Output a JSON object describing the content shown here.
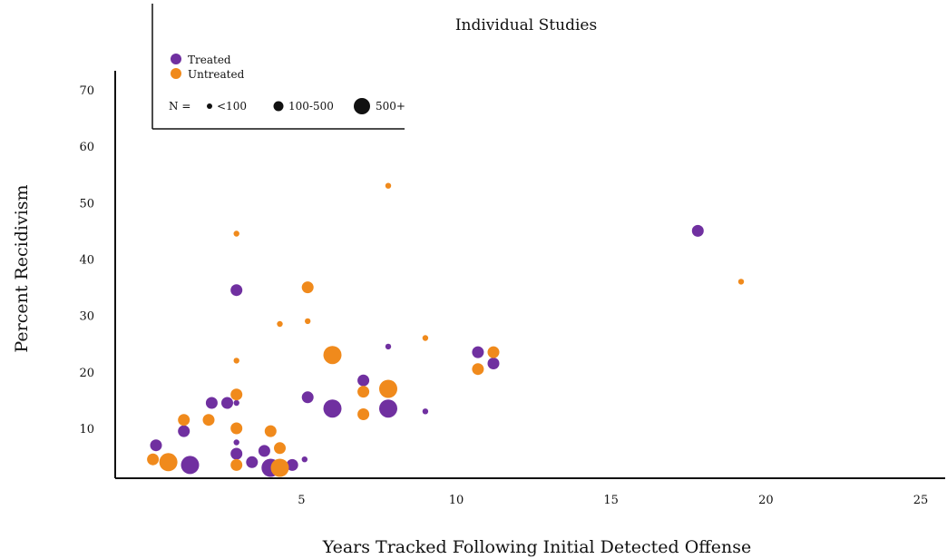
{
  "chart_data": {
    "type": "scatter",
    "title": "Individual Studies",
    "xlabel": "Years Tracked Following Initial Detected Offense",
    "ylabel": "Percent Recidivism",
    "xlim": [
      0,
      26
    ],
    "ylim": [
      0,
      75
    ],
    "xticks": [
      5,
      10,
      15,
      20,
      25
    ],
    "yticks": [
      10,
      20,
      30,
      40,
      50,
      60,
      70
    ],
    "grid": false,
    "legend": {
      "placement": "top-left",
      "series_title": "",
      "size_prefix": "N =",
      "size_labels": [
        "<100",
        "100-500",
        "500+"
      ]
    },
    "colors": {
      "Treated": "#7030a0",
      "Untreated": "#f08a1c"
    },
    "series": [
      {
        "name": "Treated",
        "points": [
          {
            "x": 0.3,
            "y": 7,
            "size": "100-500"
          },
          {
            "x": 1.2,
            "y": 9.5,
            "size": "100-500"
          },
          {
            "x": 1.4,
            "y": 3.5,
            "size": "500+"
          },
          {
            "x": 2.1,
            "y": 14.5,
            "size": "100-500"
          },
          {
            "x": 2.6,
            "y": 14.5,
            "size": "100-500"
          },
          {
            "x": 2.9,
            "y": 14.5,
            "size": "<100"
          },
          {
            "x": 2.9,
            "y": 7.5,
            "size": "<100"
          },
          {
            "x": 2.9,
            "y": 5.5,
            "size": "100-500"
          },
          {
            "x": 2.9,
            "y": 34.5,
            "size": "100-500"
          },
          {
            "x": 3.4,
            "y": 4,
            "size": "100-500"
          },
          {
            "x": 3.8,
            "y": 6,
            "size": "100-500"
          },
          {
            "x": 4.0,
            "y": 3,
            "size": "500+"
          },
          {
            "x": 4.7,
            "y": 3.5,
            "size": "100-500"
          },
          {
            "x": 5.1,
            "y": 4.5,
            "size": "<100"
          },
          {
            "x": 5.2,
            "y": 15.5,
            "size": "100-500"
          },
          {
            "x": 6.0,
            "y": 13.5,
            "size": "500+"
          },
          {
            "x": 7.0,
            "y": 18.5,
            "size": "100-500"
          },
          {
            "x": 7.8,
            "y": 24.5,
            "size": "<100"
          },
          {
            "x": 7.8,
            "y": 13.5,
            "size": "500+"
          },
          {
            "x": 9.0,
            "y": 13,
            "size": "<100"
          },
          {
            "x": 10.7,
            "y": 23.5,
            "size": "100-500"
          },
          {
            "x": 11.2,
            "y": 21.5,
            "size": "100-500"
          },
          {
            "x": 17.8,
            "y": 45,
            "size": "100-500"
          }
        ]
      },
      {
        "name": "Untreated",
        "points": [
          {
            "x": 0.2,
            "y": 4.5,
            "size": "100-500"
          },
          {
            "x": 0.7,
            "y": 4,
            "size": "500+"
          },
          {
            "x": 1.2,
            "y": 11.5,
            "size": "100-500"
          },
          {
            "x": 2.0,
            "y": 11.5,
            "size": "100-500"
          },
          {
            "x": 2.9,
            "y": 44.5,
            "size": "<100"
          },
          {
            "x": 2.9,
            "y": 22,
            "size": "<100"
          },
          {
            "x": 2.9,
            "y": 16,
            "size": "100-500"
          },
          {
            "x": 2.9,
            "y": 10,
            "size": "100-500"
          },
          {
            "x": 2.9,
            "y": 3.5,
            "size": "100-500"
          },
          {
            "x": 4.0,
            "y": 9.5,
            "size": "100-500"
          },
          {
            "x": 4.3,
            "y": 6.5,
            "size": "100-500"
          },
          {
            "x": 4.3,
            "y": 3,
            "size": "500+"
          },
          {
            "x": 4.3,
            "y": 28.5,
            "size": "<100"
          },
          {
            "x": 5.2,
            "y": 35,
            "size": "100-500"
          },
          {
            "x": 5.2,
            "y": 29,
            "size": "<100"
          },
          {
            "x": 6.0,
            "y": 23,
            "size": "500+"
          },
          {
            "x": 7.0,
            "y": 16.5,
            "size": "100-500"
          },
          {
            "x": 7.0,
            "y": 12.5,
            "size": "100-500"
          },
          {
            "x": 7.8,
            "y": 53,
            "size": "<100"
          },
          {
            "x": 7.8,
            "y": 17,
            "size": "500+"
          },
          {
            "x": 9.0,
            "y": 26,
            "size": "<100"
          },
          {
            "x": 10.7,
            "y": 20.5,
            "size": "100-500"
          },
          {
            "x": 11.2,
            "y": 23.5,
            "size": "100-500"
          },
          {
            "x": 19.2,
            "y": 36,
            "size": "<100"
          }
        ]
      }
    ]
  }
}
